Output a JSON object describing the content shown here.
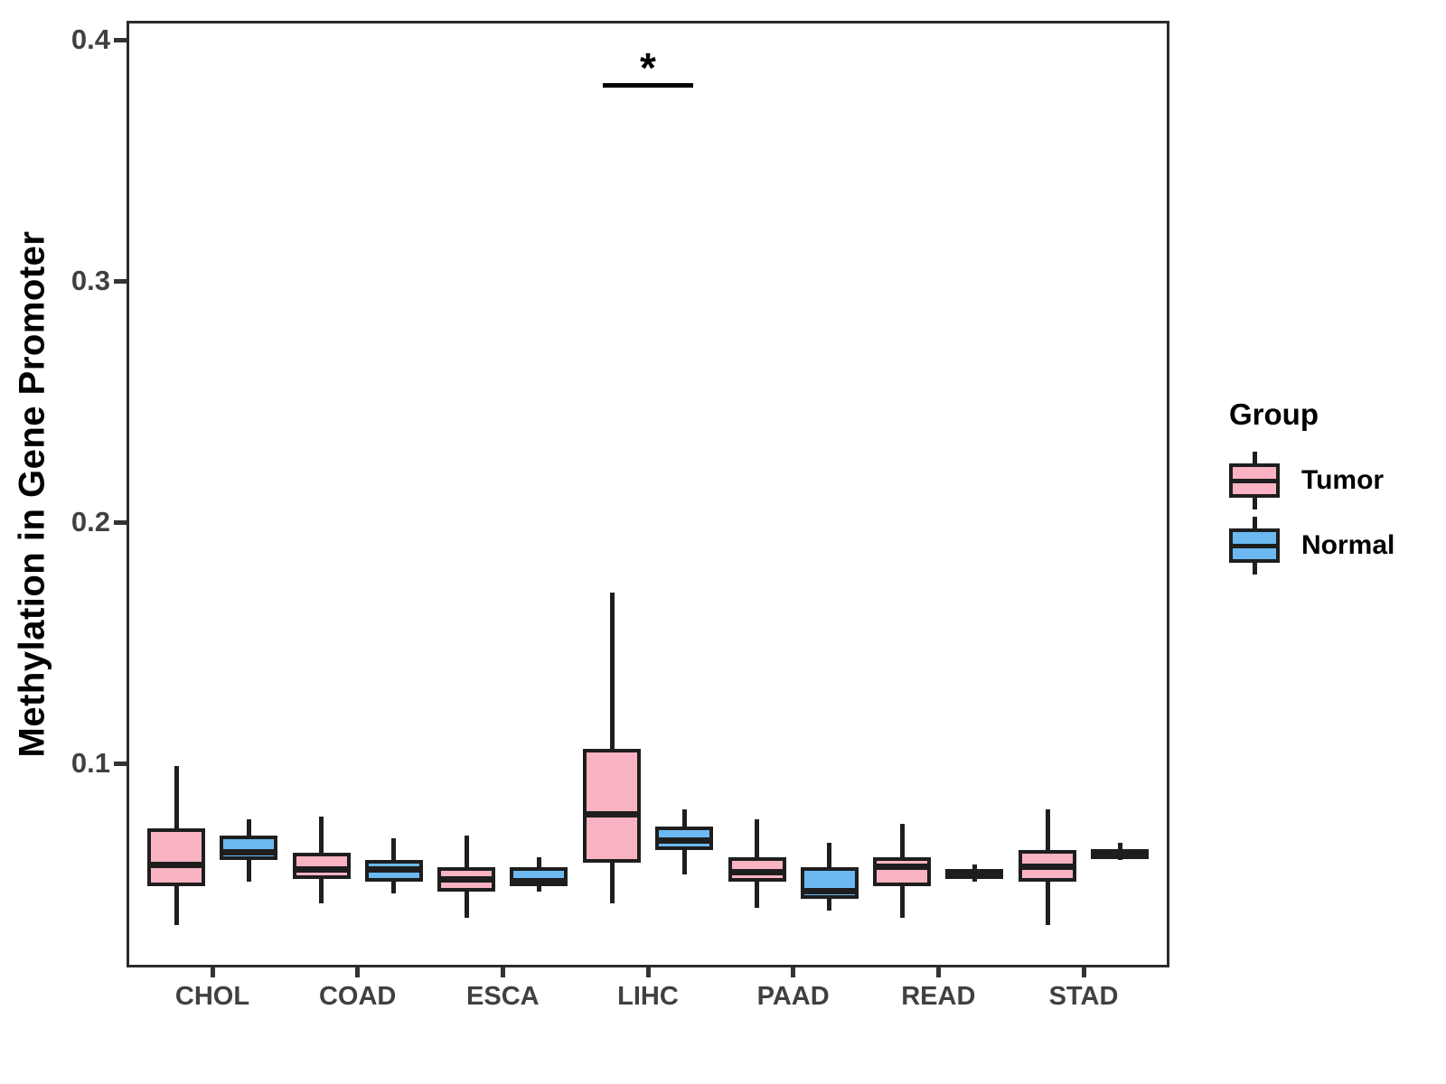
{
  "figure": {
    "y_axis_title": "Methylation in Gene Promoter"
  },
  "legend": {
    "title": "Group",
    "items": [
      {
        "label": "Tumor",
        "color": "#F9B3C2"
      },
      {
        "label": "Normal",
        "color": "#6BB9F0"
      }
    ]
  },
  "chart_data": {
    "type": "boxplot",
    "title": "",
    "xlabel": "",
    "ylabel": "Methylation in Gene Promoter",
    "ylim": [
      0.015,
      0.408
    ],
    "grid": false,
    "legend_position": "right",
    "y_ticks": [
      0.1,
      0.2,
      0.3,
      0.4
    ],
    "y_tick_labels": [
      "0.1",
      "0.2",
      "0.3",
      "0.4"
    ],
    "categories": [
      "CHOL",
      "COAD",
      "ESCA",
      "LIHC",
      "PAAD",
      "READ",
      "STAD"
    ],
    "series": [
      {
        "name": "Tumor",
        "color": "#F9B3C2",
        "boxes": [
          {
            "category": "CHOL",
            "whisker_low": 0.033,
            "q1": 0.049,
            "median": 0.058,
            "q3": 0.073,
            "whisker_high": 0.099
          },
          {
            "category": "COAD",
            "whisker_low": 0.042,
            "q1": 0.052,
            "median": 0.056,
            "q3": 0.063,
            "whisker_high": 0.078
          },
          {
            "category": "ESCA",
            "whisker_low": 0.036,
            "q1": 0.047,
            "median": 0.052,
            "q3": 0.057,
            "whisker_high": 0.07
          },
          {
            "category": "LIHC",
            "whisker_low": 0.042,
            "q1": 0.059,
            "median": 0.079,
            "q3": 0.106,
            "whisker_high": 0.171
          },
          {
            "category": "PAAD",
            "whisker_low": 0.04,
            "q1": 0.051,
            "median": 0.055,
            "q3": 0.061,
            "whisker_high": 0.077
          },
          {
            "category": "READ",
            "whisker_low": 0.036,
            "q1": 0.049,
            "median": 0.057,
            "q3": 0.061,
            "whisker_high": 0.075
          },
          {
            "category": "STAD",
            "whisker_low": 0.033,
            "q1": 0.051,
            "median": 0.057,
            "q3": 0.064,
            "whisker_high": 0.081
          }
        ]
      },
      {
        "name": "Normal",
        "color": "#6BB9F0",
        "boxes": [
          {
            "category": "CHOL",
            "whisker_low": 0.051,
            "q1": 0.06,
            "median": 0.063,
            "q3": 0.07,
            "whisker_high": 0.077
          },
          {
            "category": "COAD",
            "whisker_low": 0.046,
            "q1": 0.051,
            "median": 0.056,
            "q3": 0.06,
            "whisker_high": 0.069
          },
          {
            "category": "ESCA",
            "whisker_low": 0.047,
            "q1": 0.049,
            "median": 0.051,
            "q3": 0.057,
            "whisker_high": 0.061
          },
          {
            "category": "LIHC",
            "whisker_low": 0.054,
            "q1": 0.064,
            "median": 0.068,
            "q3": 0.074,
            "whisker_high": 0.081
          },
          {
            "category": "PAAD",
            "whisker_low": 0.039,
            "q1": 0.044,
            "median": 0.047,
            "q3": 0.057,
            "whisker_high": 0.067
          },
          {
            "category": "READ",
            "whisker_low": 0.051,
            "q1": 0.053,
            "median": 0.055,
            "q3": 0.056,
            "whisker_high": 0.058
          },
          {
            "category": "STAD",
            "whisker_low": 0.06,
            "q1": 0.061,
            "median": 0.063,
            "q3": 0.064,
            "whisker_high": 0.067
          }
        ]
      }
    ],
    "annotations": [
      {
        "type": "significance",
        "category": "LIHC",
        "label": "*",
        "bar_value": 0.382,
        "label_value": 0.392
      }
    ]
  }
}
